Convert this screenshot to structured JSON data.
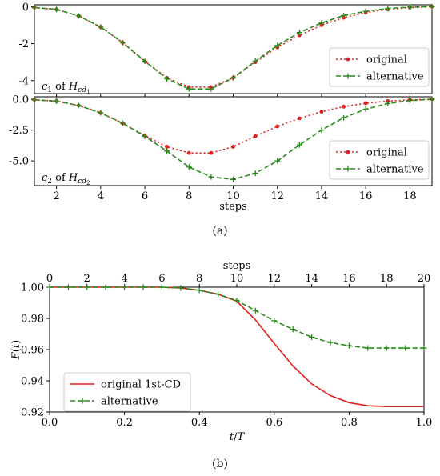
{
  "chart_data": [
    {
      "type": "line",
      "panel": "a-top",
      "annotation": {
        "text": "c1 of Hcd1",
        "var": "c",
        "var_sub": "1",
        "mid": " of ",
        "op": "H",
        "op_sub": "cd",
        "op_subsub": "1"
      },
      "x": [
        1,
        2,
        3,
        4,
        5,
        6,
        7,
        8,
        9,
        10,
        11,
        12,
        13,
        14,
        15,
        16,
        17,
        18,
        19
      ],
      "series": [
        {
          "name": "original",
          "color": "#e02020",
          "style": "dotted",
          "marker": "dot",
          "values": [
            -0.05,
            -0.15,
            -0.5,
            -1.1,
            -1.95,
            -2.95,
            -3.85,
            -4.35,
            -4.35,
            -3.85,
            -3.0,
            -2.2,
            -1.55,
            -1.0,
            -0.6,
            -0.32,
            -0.15,
            -0.05,
            0.0
          ]
        },
        {
          "name": "alternative",
          "color": "#2a8a1e",
          "style": "dashed",
          "marker": "plus",
          "values": [
            -0.05,
            -0.15,
            -0.5,
            -1.1,
            -1.95,
            -2.95,
            -3.9,
            -4.45,
            -4.45,
            -3.85,
            -2.95,
            -2.1,
            -1.4,
            -0.88,
            -0.48,
            -0.25,
            -0.1,
            -0.03,
            0.0
          ]
        }
      ],
      "xlim": [
        1,
        19
      ],
      "ylim": [
        -4.7,
        0.1
      ],
      "yticks": [
        "0",
        "-2",
        "-4"
      ],
      "legend": "lower-right"
    },
    {
      "type": "line",
      "panel": "a-bottom",
      "annotation": {
        "text": "c2 of Hcd2",
        "var": "c",
        "var_sub": "2",
        "mid": " of ",
        "op": "H",
        "op_sub": "cd",
        "op_subsub": "2"
      },
      "x": [
        1,
        2,
        3,
        4,
        5,
        6,
        7,
        8,
        9,
        10,
        11,
        12,
        13,
        14,
        15,
        16,
        17,
        18,
        19
      ],
      "series": [
        {
          "name": "original",
          "color": "#e02020",
          "style": "dotted",
          "marker": "dot",
          "values": [
            -0.05,
            -0.15,
            -0.5,
            -1.1,
            -1.95,
            -2.95,
            -3.85,
            -4.35,
            -4.35,
            -3.85,
            -3.0,
            -2.2,
            -1.55,
            -1.0,
            -0.6,
            -0.32,
            -0.15,
            -0.05,
            0.0
          ]
        },
        {
          "name": "alternative",
          "color": "#2a8a1e",
          "style": "dashed",
          "marker": "plus",
          "values": [
            -0.05,
            -0.15,
            -0.5,
            -1.1,
            -1.95,
            -3.0,
            -4.2,
            -5.5,
            -6.3,
            -6.5,
            -6.0,
            -5.0,
            -3.7,
            -2.5,
            -1.5,
            -0.8,
            -0.35,
            -0.1,
            0.0
          ]
        }
      ],
      "xlim": [
        1,
        19
      ],
      "ylim": [
        -7.0,
        0.2
      ],
      "xticks": [
        "2",
        "4",
        "6",
        "8",
        "10",
        "12",
        "14",
        "16",
        "18"
      ],
      "yticks": [
        "0.0",
        "-2.5",
        "-5.0"
      ],
      "xlabel": "steps",
      "legend": "lower-right"
    },
    {
      "type": "line",
      "panel": "b",
      "x_curve": [
        0,
        0.05,
        0.1,
        0.15,
        0.2,
        0.25,
        0.3,
        0.35,
        0.4,
        0.45,
        0.5,
        0.55,
        0.6,
        0.65,
        0.7,
        0.75,
        0.8,
        0.85,
        0.9,
        0.95,
        1.0
      ],
      "series": [
        {
          "name": "original 1st-CD",
          "color": "#e02020",
          "style": "solid",
          "marker": "none",
          "values": [
            1.0,
            1.0,
            1.0,
            1.0,
            1.0,
            1.0,
            1.0,
            0.9995,
            0.998,
            0.9955,
            0.991,
            0.979,
            0.964,
            0.9495,
            0.938,
            0.9305,
            0.926,
            0.924,
            0.9235,
            0.9235,
            0.9235
          ]
        },
        {
          "name": "alternative",
          "color": "#2a8a1e",
          "style": "dashed",
          "marker": "plus",
          "values": [
            1.0,
            1.0,
            1.0,
            1.0,
            1.0,
            1.0,
            1.0,
            0.9995,
            0.998,
            0.9955,
            0.9915,
            0.985,
            0.9785,
            0.973,
            0.968,
            0.9645,
            0.9625,
            0.961,
            0.961,
            0.961,
            0.961
          ]
        }
      ],
      "xlim": [
        0,
        1
      ],
      "ylim": [
        0.92,
        1.0
      ],
      "xticks": [
        "0.0",
        "0.2",
        "0.4",
        "0.6",
        "0.8",
        "1.0"
      ],
      "yticks": [
        "1.00",
        "0.98",
        "0.96",
        "0.94",
        "0.92"
      ],
      "top_xticks": [
        "0",
        "2",
        "4",
        "6",
        "8",
        "10",
        "12",
        "14",
        "16",
        "18",
        "20"
      ],
      "top_xlabel": "steps",
      "xlabel": "t/T",
      "ylabel": "F(t)",
      "legend": "lower-left"
    }
  ],
  "captions": {
    "a": "(a)",
    "b": "(b)"
  }
}
